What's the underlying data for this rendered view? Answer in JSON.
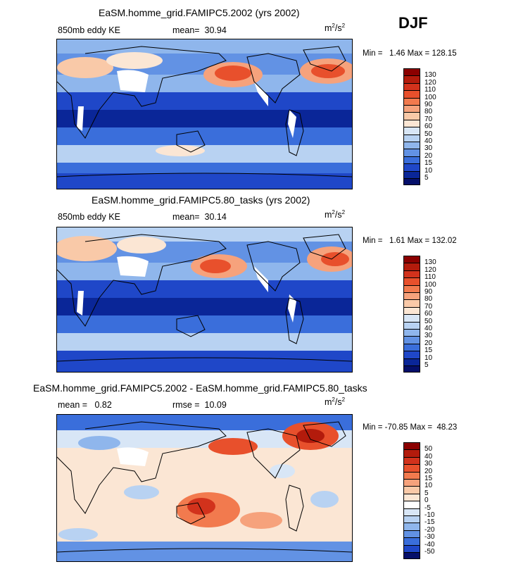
{
  "season": "DJF",
  "unit_base": "m",
  "unit_exp": "2",
  "unit_den": "/s",
  "unit_den_exp": "2",
  "panels": [
    {
      "title": "EaSM.homme_grid.FAMIPC5.2002 (yrs 2002)",
      "variable": "850mb eddy KE",
      "mean_label": "mean=",
      "mean_value": "30.94",
      "min_label": "Min =",
      "min_value": "1.46",
      "max_label": "Max =",
      "max_value": "128.15",
      "colorbar_levels": [
        "130",
        "120",
        "110",
        "100",
        "90",
        "80",
        "70",
        "60",
        "50",
        "40",
        "30",
        "20",
        "15",
        "10",
        "5"
      ],
      "colorbar_colors": [
        "#8b0000",
        "#b31b0c",
        "#d2321c",
        "#e8502c",
        "#f27a4e",
        "#f6a27c",
        "#f9c9a8",
        "#fbe6d4",
        "#d8e6f6",
        "#b8d2f2",
        "#8fb6ec",
        "#6292e4",
        "#3a6edb",
        "#1f47c8",
        "#0a2698",
        "#050f6a"
      ]
    },
    {
      "title": "EaSM.homme_grid.FAMIPC5.80_tasks (yrs 2002)",
      "variable": "850mb eddy KE",
      "mean_label": "mean=",
      "mean_value": "30.14",
      "min_label": "Min =",
      "min_value": "1.61",
      "max_label": "Max =",
      "max_value": "132.02",
      "colorbar_levels": [
        "130",
        "120",
        "110",
        "100",
        "90",
        "80",
        "70",
        "60",
        "50",
        "40",
        "30",
        "20",
        "15",
        "10",
        "5"
      ],
      "colorbar_colors": [
        "#8b0000",
        "#b31b0c",
        "#d2321c",
        "#e8502c",
        "#f27a4e",
        "#f6a27c",
        "#f9c9a8",
        "#fbe6d4",
        "#d8e6f6",
        "#b8d2f2",
        "#8fb6ec",
        "#6292e4",
        "#3a6edb",
        "#1f47c8",
        "#0a2698",
        "#050f6a"
      ]
    },
    {
      "title": "EaSM.homme_grid.FAMIPC5.2002 - EaSM.homme_grid.FAMIPC5.80_tasks",
      "mean_label": "mean =",
      "mean_value": "0.82",
      "rmse_label": "rmse =",
      "rmse_value": "10.09",
      "min_label": "Min =",
      "min_value": "-70.85",
      "max_label": "Max =",
      "max_value": "48.23",
      "colorbar_levels": [
        "50",
        "40",
        "30",
        "20",
        "15",
        "10",
        "5",
        "0",
        "-5",
        "-10",
        "-15",
        "-20",
        "-30",
        "-40",
        "-50"
      ],
      "colorbar_colors": [
        "#8b0000",
        "#b31b0c",
        "#d2321c",
        "#e8502c",
        "#f27a4e",
        "#f6a27c",
        "#f9c9a8",
        "#fbe6d4",
        "#ffffff",
        "#d8e6f6",
        "#b8d2f2",
        "#8fb6ec",
        "#6292e4",
        "#3a6edb",
        "#1f47c8",
        "#050f6a"
      ]
    }
  ]
}
